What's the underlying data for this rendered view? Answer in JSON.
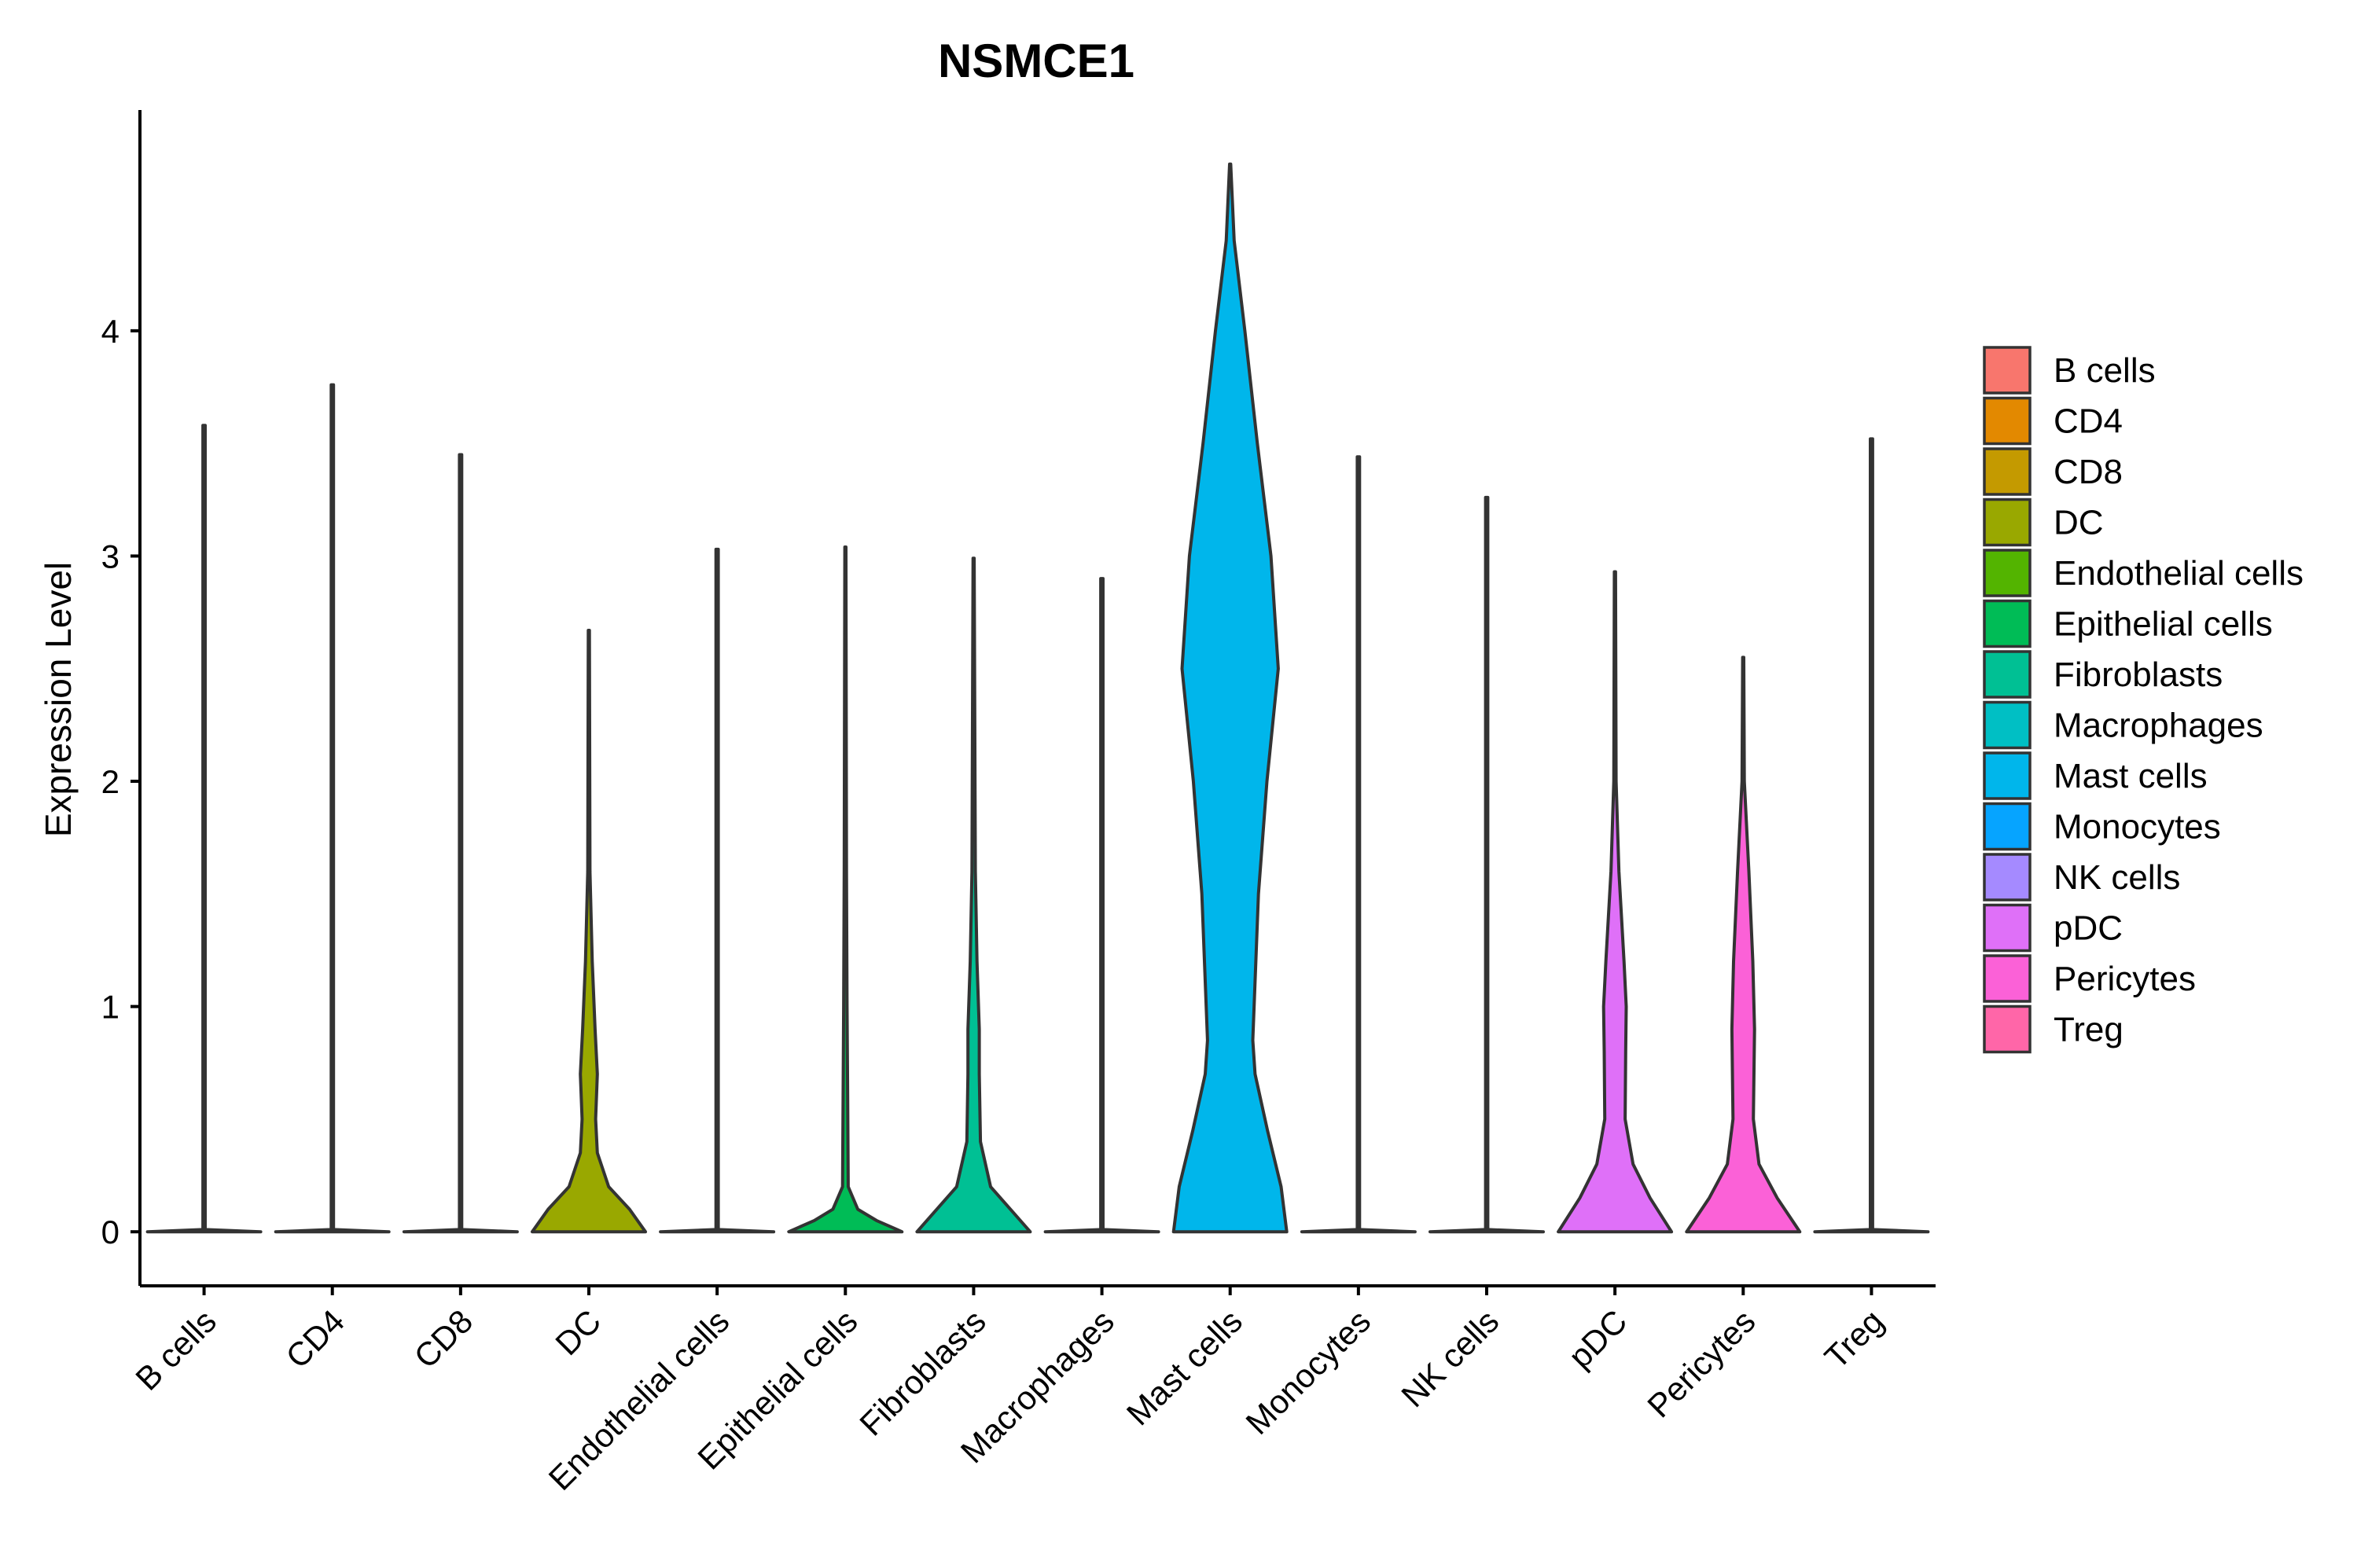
{
  "chart_data": {
    "type": "violin",
    "title": "NSMCE1",
    "xlabel": "",
    "ylabel": "Expression Level",
    "ylim": [
      -0.24,
      4.98
    ],
    "yticks": [
      0,
      1,
      2,
      3,
      4
    ],
    "legend_position": "right",
    "grid": false,
    "categories": [
      "B cells",
      "CD4",
      "CD8",
      "DC",
      "Endothelial cells",
      "Epithelial cells",
      "Fibroblasts",
      "Macrophages",
      "Mast cells",
      "Monocytes",
      "NK cells",
      "pDC",
      "Pericytes",
      "Treg"
    ],
    "colors": [
      "#F8766D",
      "#E38900",
      "#C49A00",
      "#99A800",
      "#53B400",
      "#00BC56",
      "#00C094",
      "#00BFC4",
      "#00B6EB",
      "#06A4FF",
      "#A58AFF",
      "#DF70F8",
      "#FB61D7",
      "#FF66A8"
    ],
    "max_values": [
      3.58,
      3.76,
      3.45,
      2.67,
      3.03,
      3.04,
      2.99,
      2.9,
      4.74,
      3.44,
      3.26,
      2.93,
      2.55,
      3.52
    ],
    "density_profiles": [
      [
        [
          0,
          1.0
        ],
        [
          0.01,
          0.02
        ],
        [
          3.58,
          0.02
        ]
      ],
      [
        [
          0,
          1.0
        ],
        [
          0.01,
          0.02
        ],
        [
          3.76,
          0.02
        ]
      ],
      [
        [
          0,
          1.0
        ],
        [
          0.01,
          0.02
        ],
        [
          3.45,
          0.02
        ]
      ],
      [
        [
          0,
          1.0
        ],
        [
          0.1,
          0.72
        ],
        [
          0.2,
          0.35
        ],
        [
          0.35,
          0.15
        ],
        [
          0.5,
          0.12
        ],
        [
          0.7,
          0.15
        ],
        [
          0.9,
          0.11
        ],
        [
          1.2,
          0.06
        ],
        [
          1.6,
          0.02
        ],
        [
          2.67,
          0.01
        ]
      ],
      [
        [
          0,
          1.0
        ],
        [
          0.01,
          0.02
        ],
        [
          3.03,
          0.02
        ]
      ],
      [
        [
          0,
          1.0
        ],
        [
          0.05,
          0.55
        ],
        [
          0.1,
          0.22
        ],
        [
          0.2,
          0.05
        ],
        [
          0.6,
          0.04
        ],
        [
          1.0,
          0.03
        ],
        [
          1.6,
          0.02
        ],
        [
          3.04,
          0.01
        ]
      ],
      [
        [
          0,
          1.0
        ],
        [
          0.1,
          0.65
        ],
        [
          0.2,
          0.3
        ],
        [
          0.4,
          0.12
        ],
        [
          0.7,
          0.1
        ],
        [
          0.9,
          0.1
        ],
        [
          1.2,
          0.06
        ],
        [
          1.6,
          0.03
        ],
        [
          2.99,
          0.01
        ]
      ],
      [
        [
          0,
          1.0
        ],
        [
          0.01,
          0.02
        ],
        [
          2.9,
          0.02
        ]
      ],
      [
        [
          0,
          1.0
        ],
        [
          0.2,
          0.9
        ],
        [
          0.45,
          0.66
        ],
        [
          0.7,
          0.44
        ],
        [
          0.85,
          0.4
        ],
        [
          1.5,
          0.5
        ],
        [
          2.0,
          0.65
        ],
        [
          2.5,
          0.85
        ],
        [
          3.0,
          0.72
        ],
        [
          3.5,
          0.48
        ],
        [
          4.0,
          0.26
        ],
        [
          4.4,
          0.07
        ],
        [
          4.74,
          0.01
        ]
      ],
      [
        [
          0,
          1.0
        ],
        [
          0.01,
          0.02
        ],
        [
          3.44,
          0.02
        ]
      ],
      [
        [
          0,
          1.0
        ],
        [
          0.01,
          0.02
        ],
        [
          3.26,
          0.02
        ]
      ],
      [
        [
          0,
          1.0
        ],
        [
          0.15,
          0.62
        ],
        [
          0.3,
          0.32
        ],
        [
          0.5,
          0.18
        ],
        [
          0.8,
          0.19
        ],
        [
          1.0,
          0.2
        ],
        [
          1.2,
          0.16
        ],
        [
          1.6,
          0.07
        ],
        [
          2.0,
          0.02
        ],
        [
          2.93,
          0.01
        ]
      ],
      [
        [
          0,
          1.0
        ],
        [
          0.15,
          0.6
        ],
        [
          0.3,
          0.28
        ],
        [
          0.5,
          0.18
        ],
        [
          0.9,
          0.2
        ],
        [
          1.2,
          0.17
        ],
        [
          1.6,
          0.1
        ],
        [
          2.0,
          0.02
        ],
        [
          2.55,
          0.01
        ]
      ],
      [
        [
          0,
          1.0
        ],
        [
          0.01,
          0.02
        ],
        [
          3.52,
          0.02
        ]
      ]
    ]
  }
}
